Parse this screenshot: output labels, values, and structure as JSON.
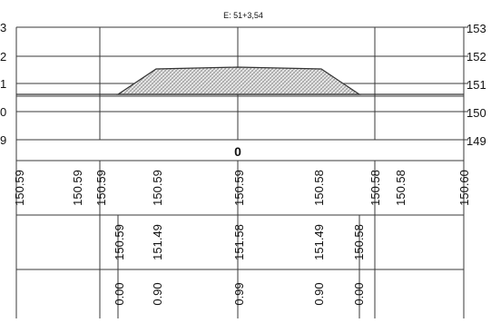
{
  "title": "E: 51+3,54",
  "center_label": "0",
  "elev_left": [
    "3",
    "2",
    "1",
    "0",
    "9"
  ],
  "elev_right": [
    "153",
    "152",
    "151",
    "150",
    "149"
  ],
  "row1_values": [
    "150.59",
    "150.59",
    "150.59",
    "150.59",
    "150.59",
    "150.58",
    "150.58",
    "150.58",
    "150.60"
  ],
  "row2_values": [
    "150.59",
    "151.49",
    "151.58",
    "151.49",
    "150.58"
  ],
  "row3_values": [
    "0.00",
    "0.90",
    "0.99",
    "0.90",
    "0.00"
  ],
  "colors": {
    "line": "#3a3a3a",
    "fill_hatch": "#bdbdbd"
  }
}
